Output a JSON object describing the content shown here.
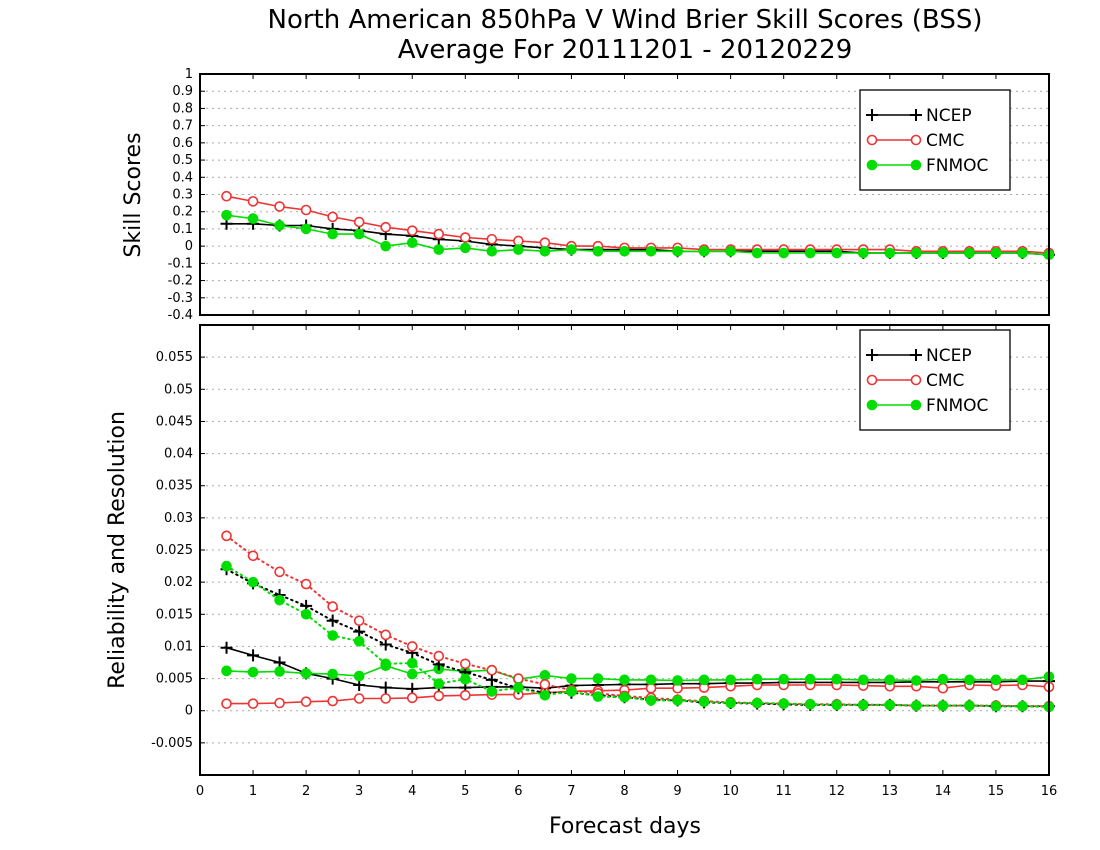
{
  "title_line1": "North American 850hPa V Wind Brier Skill Scores (BSS)",
  "title_line2": "Average For 20111201 - 20120229",
  "xlabel": "Forecast days",
  "colors": {
    "NCEP": "#000000",
    "CMC": "#ee3333",
    "FNMOC": "#00dd00",
    "grid": "#aaaaaa"
  },
  "chart_data": [
    {
      "type": "line",
      "ylabel": "Skill Scores",
      "xlim": [
        0,
        16
      ],
      "ylim": [
        -0.4,
        1
      ],
      "xticks": [
        "0",
        "1",
        "2",
        "3",
        "4",
        "5",
        "6",
        "7",
        "8",
        "9",
        "10",
        "11",
        "12",
        "13",
        "14",
        "15",
        "16"
      ],
      "yticks": [
        "-0.4",
        "-0.3",
        "-0.2",
        "-0.1",
        "0",
        "0.1",
        "0.2",
        "0.3",
        "0.4",
        "0.5",
        "0.6",
        "0.7",
        "0.8",
        "0.9",
        "1"
      ],
      "grid": true,
      "legend": "top-right",
      "x": [
        0.5,
        1,
        1.5,
        2,
        2.5,
        3,
        3.5,
        4,
        4.5,
        5,
        5.5,
        6,
        6.5,
        7,
        7.5,
        8,
        8.5,
        9,
        9.5,
        10,
        10.5,
        11,
        11.5,
        12,
        12.5,
        13,
        13.5,
        14,
        14.5,
        15,
        15.5,
        16
      ],
      "series": [
        {
          "name": "NCEP",
          "style": "solid",
          "marker": "plus",
          "values": [
            0.13,
            0.13,
            0.12,
            0.12,
            0.1,
            0.09,
            0.07,
            0.06,
            0.04,
            0.03,
            0.01,
            0.0,
            -0.01,
            -0.02,
            -0.02,
            -0.02,
            -0.02,
            -0.03,
            -0.03,
            -0.03,
            -0.03,
            -0.03,
            -0.03,
            -0.03,
            -0.04,
            -0.04,
            -0.04,
            -0.04,
            -0.04,
            -0.04,
            -0.04,
            -0.05
          ]
        },
        {
          "name": "CMC",
          "style": "solid",
          "marker": "open-circle",
          "values": [
            0.29,
            0.26,
            0.23,
            0.21,
            0.17,
            0.14,
            0.11,
            0.09,
            0.07,
            0.05,
            0.04,
            0.03,
            0.02,
            0.0,
            0.0,
            -0.01,
            -0.01,
            -0.01,
            -0.02,
            -0.02,
            -0.02,
            -0.02,
            -0.02,
            -0.02,
            -0.02,
            -0.02,
            -0.03,
            -0.03,
            -0.03,
            -0.03,
            -0.03,
            -0.04
          ]
        },
        {
          "name": "FNMOC",
          "style": "solid",
          "marker": "filled-circle",
          "values": [
            0.18,
            0.16,
            0.12,
            0.1,
            0.07,
            0.07,
            0.0,
            0.02,
            -0.02,
            -0.01,
            -0.03,
            -0.02,
            -0.03,
            -0.02,
            -0.03,
            -0.03,
            -0.03,
            -0.03,
            -0.03,
            -0.03,
            -0.04,
            -0.04,
            -0.04,
            -0.04,
            -0.04,
            -0.04,
            -0.04,
            -0.04,
            -0.04,
            -0.04,
            -0.04,
            -0.05
          ]
        }
      ]
    },
    {
      "type": "line",
      "ylabel": "Reliability and Resolution",
      "xlim": [
        0,
        16
      ],
      "ylim": [
        -0.01,
        0.06
      ],
      "xticks": [
        "0",
        "1",
        "2",
        "3",
        "4",
        "5",
        "6",
        "7",
        "8",
        "9",
        "10",
        "11",
        "12",
        "13",
        "14",
        "15",
        "16"
      ],
      "yticks": [
        "-0.005",
        "0",
        "0.005",
        "0.01",
        "0.015",
        "0.02",
        "0.025",
        "0.03",
        "0.035",
        "0.04",
        "0.045",
        "0.05",
        "0.055"
      ],
      "grid": true,
      "legend": "top-right",
      "x": [
        0.5,
        1,
        1.5,
        2,
        2.5,
        3,
        3.5,
        4,
        4.5,
        5,
        5.5,
        6,
        6.5,
        7,
        7.5,
        8,
        8.5,
        9,
        9.5,
        10,
        10.5,
        11,
        11.5,
        12,
        12.5,
        13,
        13.5,
        14,
        14.5,
        15,
        15.5,
        16
      ],
      "series": [
        {
          "name": "NCEP",
          "component": "reliability",
          "style": "solid",
          "marker": "plus",
          "values": [
            0.0098,
            0.0086,
            0.0075,
            0.0058,
            0.005,
            0.004,
            0.0036,
            0.0034,
            0.0036,
            0.0036,
            0.0037,
            0.0037,
            0.0035,
            0.0039,
            0.004,
            0.0041,
            0.0041,
            0.0042,
            0.0042,
            0.0043,
            0.0043,
            0.0044,
            0.0044,
            0.0044,
            0.0044,
            0.0044,
            0.0045,
            0.0045,
            0.0045,
            0.0045,
            0.0046,
            0.0046
          ]
        },
        {
          "name": "CMC",
          "component": "reliability",
          "style": "solid",
          "marker": "open-circle",
          "values": [
            0.0011,
            0.0011,
            0.0012,
            0.0014,
            0.0015,
            0.0019,
            0.0019,
            0.002,
            0.0023,
            0.0024,
            0.0025,
            0.0025,
            0.0028,
            0.003,
            0.0031,
            0.0032,
            0.0035,
            0.0035,
            0.0036,
            0.0038,
            0.004,
            0.004,
            0.004,
            0.004,
            0.0039,
            0.0038,
            0.0038,
            0.0035,
            0.004,
            0.0039,
            0.004,
            0.0037
          ]
        },
        {
          "name": "FNMOC",
          "component": "reliability",
          "style": "solid",
          "marker": "filled-circle",
          "values": [
            0.0062,
            0.006,
            0.0061,
            0.0058,
            0.0057,
            0.0054,
            0.007,
            0.0057,
            0.0065,
            0.0061,
            0.0063,
            0.0049,
            0.0055,
            0.005,
            0.005,
            0.0048,
            0.0048,
            0.0047,
            0.0048,
            0.0048,
            0.0049,
            0.0049,
            0.0049,
            0.0049,
            0.0048,
            0.0048,
            0.0047,
            0.0049,
            0.0048,
            0.0048,
            0.0048,
            0.0053
          ]
        },
        {
          "name": "NCEP",
          "component": "resolution",
          "style": "dotted",
          "marker": "plus",
          "values": [
            0.022,
            0.0198,
            0.018,
            0.0163,
            0.014,
            0.0123,
            0.0103,
            0.009,
            0.0072,
            0.006,
            0.0048,
            0.0035,
            0.0028,
            0.0028,
            0.0024,
            0.0021,
            0.0017,
            0.0016,
            0.0013,
            0.0012,
            0.0011,
            0.001,
            0.0009,
            0.0009,
            0.0009,
            0.0009,
            0.0008,
            0.0008,
            0.0008,
            0.0007,
            0.0007,
            0.0007
          ]
        },
        {
          "name": "CMC",
          "component": "resolution",
          "style": "dotted",
          "marker": "open-circle",
          "values": [
            0.0272,
            0.0241,
            0.0216,
            0.0197,
            0.0162,
            0.014,
            0.0118,
            0.01,
            0.0085,
            0.0073,
            0.0063,
            0.005,
            0.0041,
            0.0032,
            0.0027,
            0.0023,
            0.002,
            0.0017,
            0.0015,
            0.0013,
            0.0012,
            0.0011,
            0.001,
            0.001,
            0.0009,
            0.0009,
            0.0008,
            0.0008,
            0.0008,
            0.0008,
            0.0007,
            0.0007
          ]
        },
        {
          "name": "FNMOC",
          "component": "resolution",
          "style": "dotted",
          "marker": "filled-circle",
          "values": [
            0.0225,
            0.02,
            0.0172,
            0.015,
            0.0117,
            0.0108,
            0.0073,
            0.0074,
            0.0042,
            0.0049,
            0.003,
            0.0036,
            0.0024,
            0.003,
            0.0022,
            0.0021,
            0.0016,
            0.0016,
            0.0014,
            0.0012,
            0.0012,
            0.0011,
            0.001,
            0.0009,
            0.0009,
            0.0009,
            0.0008,
            0.0008,
            0.0008,
            0.0007,
            0.0007,
            0.0006
          ]
        }
      ]
    }
  ]
}
